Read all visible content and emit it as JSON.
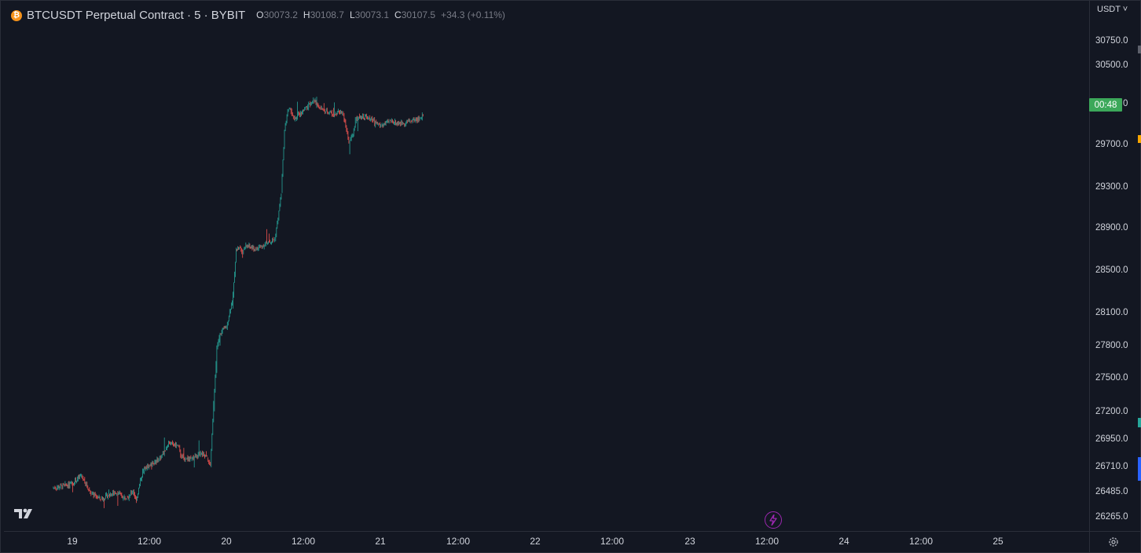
{
  "legend": {
    "symbol": "BTCUSDT Perpetual Contract · 5 · BYBIT",
    "open_label": "O",
    "open_value": "30073.2",
    "high_label": "H",
    "high_value": "30108.7",
    "low_label": "L",
    "low_value": "30073.1",
    "close_label": "C",
    "close_value": "30107.5",
    "change": "+34.3 (+0.11%)"
  },
  "price_axis": {
    "currency": "USDT",
    "ticks": [
      "30750.0",
      "30500.0",
      "29700.0",
      "29300.0",
      "28900.0",
      "28500.0",
      "28100.0",
      "27800.0",
      "27500.0",
      "27200.0",
      "26950.0",
      "26710.0",
      "26485.0",
      "26265.0"
    ],
    "countdown": "00:48",
    "countdown_tail": "0"
  },
  "time_axis": {
    "ticks": [
      "19",
      "12:00",
      "20",
      "12:00",
      "21",
      "12:00",
      "22",
      "12:00",
      "23",
      "12:00",
      "24",
      "12:00",
      "25"
    ]
  },
  "colors": {
    "background": "#131722",
    "up": "#26a69a",
    "down": "#ef5350",
    "countdown_bg": "#3ca85a",
    "accent_bolt": "#9c27b0"
  },
  "icons": {
    "coin": "bitcoin-icon",
    "logo": "tradingview-logo-icon",
    "bolt": "lightning-icon",
    "settings": "gear-icon",
    "dropdown": "chevron-down-icon"
  },
  "chart_data": {
    "type": "line",
    "title": "BTCUSDT Perpetual Contract · 5 · BYBIT",
    "xlabel": "",
    "ylabel": "",
    "ylim": [
      26200,
      30850
    ],
    "x": [
      "18 18:00",
      "19 00:00",
      "19 03:00",
      "19 06:00",
      "19 09:00",
      "19 12:00",
      "19 14:00",
      "19 16:00",
      "19 17:00",
      "19 18:00",
      "19 19:00",
      "19 20:00",
      "19 21:00",
      "19 22:00",
      "20 00:00",
      "20 03:00",
      "20 05:00",
      "20 06:00",
      "20 09:00",
      "20 10:00",
      "20 13:00",
      "20 16:00",
      "20 18:00",
      "20 19:00",
      "20 20:00",
      "20 21:00",
      "20 22:00",
      "21 00:00",
      "21 01:00",
      "21 02:00",
      "21 03:00",
      "21 04:00",
      "21 05:00",
      "21 06:00",
      "21 09:00",
      "21 12:00",
      "21 15:00",
      "21 16:00",
      "21 17:00",
      "21 18:00",
      "21 19:00",
      "21 20:00",
      "21 21:00",
      "21 22:00",
      "22 00:00",
      "22 03:00",
      "22 05:00",
      "22 06:00",
      "22 09:00",
      "22 12:00",
      "22 14:00",
      "22 15:00",
      "22 16:00",
      "22 17:00",
      "22 20:00",
      "23 00:00",
      "23 03:00",
      "23 06:00",
      "23 09:00",
      "23 12:00",
      "23 13:00"
    ],
    "series": [
      {
        "values": [
          26480,
          26520,
          26600,
          26430,
          26370,
          26420,
          26440,
          26390,
          26400,
          26410,
          26450,
          26360,
          26510,
          26640,
          26700,
          26760,
          26850,
          26920,
          26890,
          26780,
          26760,
          26820,
          26770,
          26700,
          27300,
          27850,
          27980,
          28050,
          28200,
          28350,
          28800,
          28830,
          28760,
          28840,
          28800,
          28850,
          28900,
          29100,
          29350,
          29950,
          30150,
          30150,
          30050,
          30100,
          30150,
          30250,
          30180,
          30150,
          30120,
          30140,
          29850,
          29900,
          30050,
          30100,
          30080,
          30000,
          30050,
          30020,
          30050,
          30070,
          30107
        ]
      }
    ]
  }
}
